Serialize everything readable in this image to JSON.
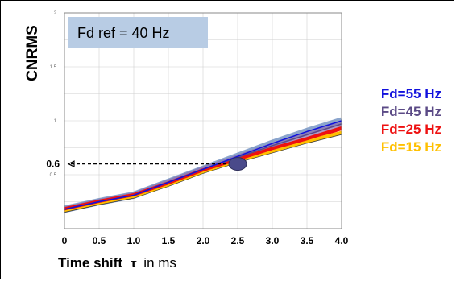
{
  "chart_data": {
    "type": "line",
    "title": "",
    "ylabel": "CNRMS",
    "xlabel": {
      "main": "Time shift",
      "symbol": "τ",
      "unit": "in ms"
    },
    "x": [
      0,
      0.5,
      1.0,
      1.5,
      2.0,
      2.5,
      3.0,
      3.5,
      4.0
    ],
    "xticks": [
      "0",
      "0.5",
      "1.0",
      "1.5",
      "2.0",
      "2.5",
      "3.0",
      "3.5",
      "4.0"
    ],
    "yticks": [
      {
        "value": 0.5,
        "label": "0.5"
      },
      {
        "value": 1,
        "label": "1"
      },
      {
        "value": 1.5,
        "label": "1.5"
      },
      {
        "value": 2,
        "label": "2"
      }
    ],
    "xlim": [
      0,
      4.0
    ],
    "ylim": [
      0,
      2
    ],
    "grid": true,
    "legend_position": "right",
    "series": [
      {
        "name": "Fd=55 Hz",
        "color": "#1010dd",
        "band_color": "#5a7fb8",
        "values": [
          0.18,
          0.25,
          0.31,
          0.43,
          0.55,
          0.67,
          0.79,
          0.9,
          1.0
        ]
      },
      {
        "name": "Fd=45 Hz",
        "color": "#5b4a86",
        "band_color": "#8a6fb0",
        "values": [
          0.18,
          0.25,
          0.31,
          0.43,
          0.55,
          0.66,
          0.77,
          0.87,
          0.97
        ]
      },
      {
        "name": "Fd=25 Hz",
        "color": "#ee1111",
        "band_color": "#ee1111",
        "values": [
          0.18,
          0.25,
          0.31,
          0.42,
          0.54,
          0.64,
          0.74,
          0.83,
          0.93
        ]
      },
      {
        "name": "Fd=15 Hz",
        "color": "#ffc000",
        "band_color": "#ffc000",
        "values": [
          0.17,
          0.24,
          0.3,
          0.41,
          0.53,
          0.63,
          0.72,
          0.81,
          0.89
        ]
      }
    ],
    "reference_box": "Fd ref = 40 Hz",
    "annotation": {
      "label": "0.6",
      "x": 2.5,
      "y": 0.6
    },
    "colors": {
      "ref_box_fill": "#b8cce4",
      "marker_fill": "#4a4a8a",
      "grid": "#d0d0d0"
    }
  }
}
